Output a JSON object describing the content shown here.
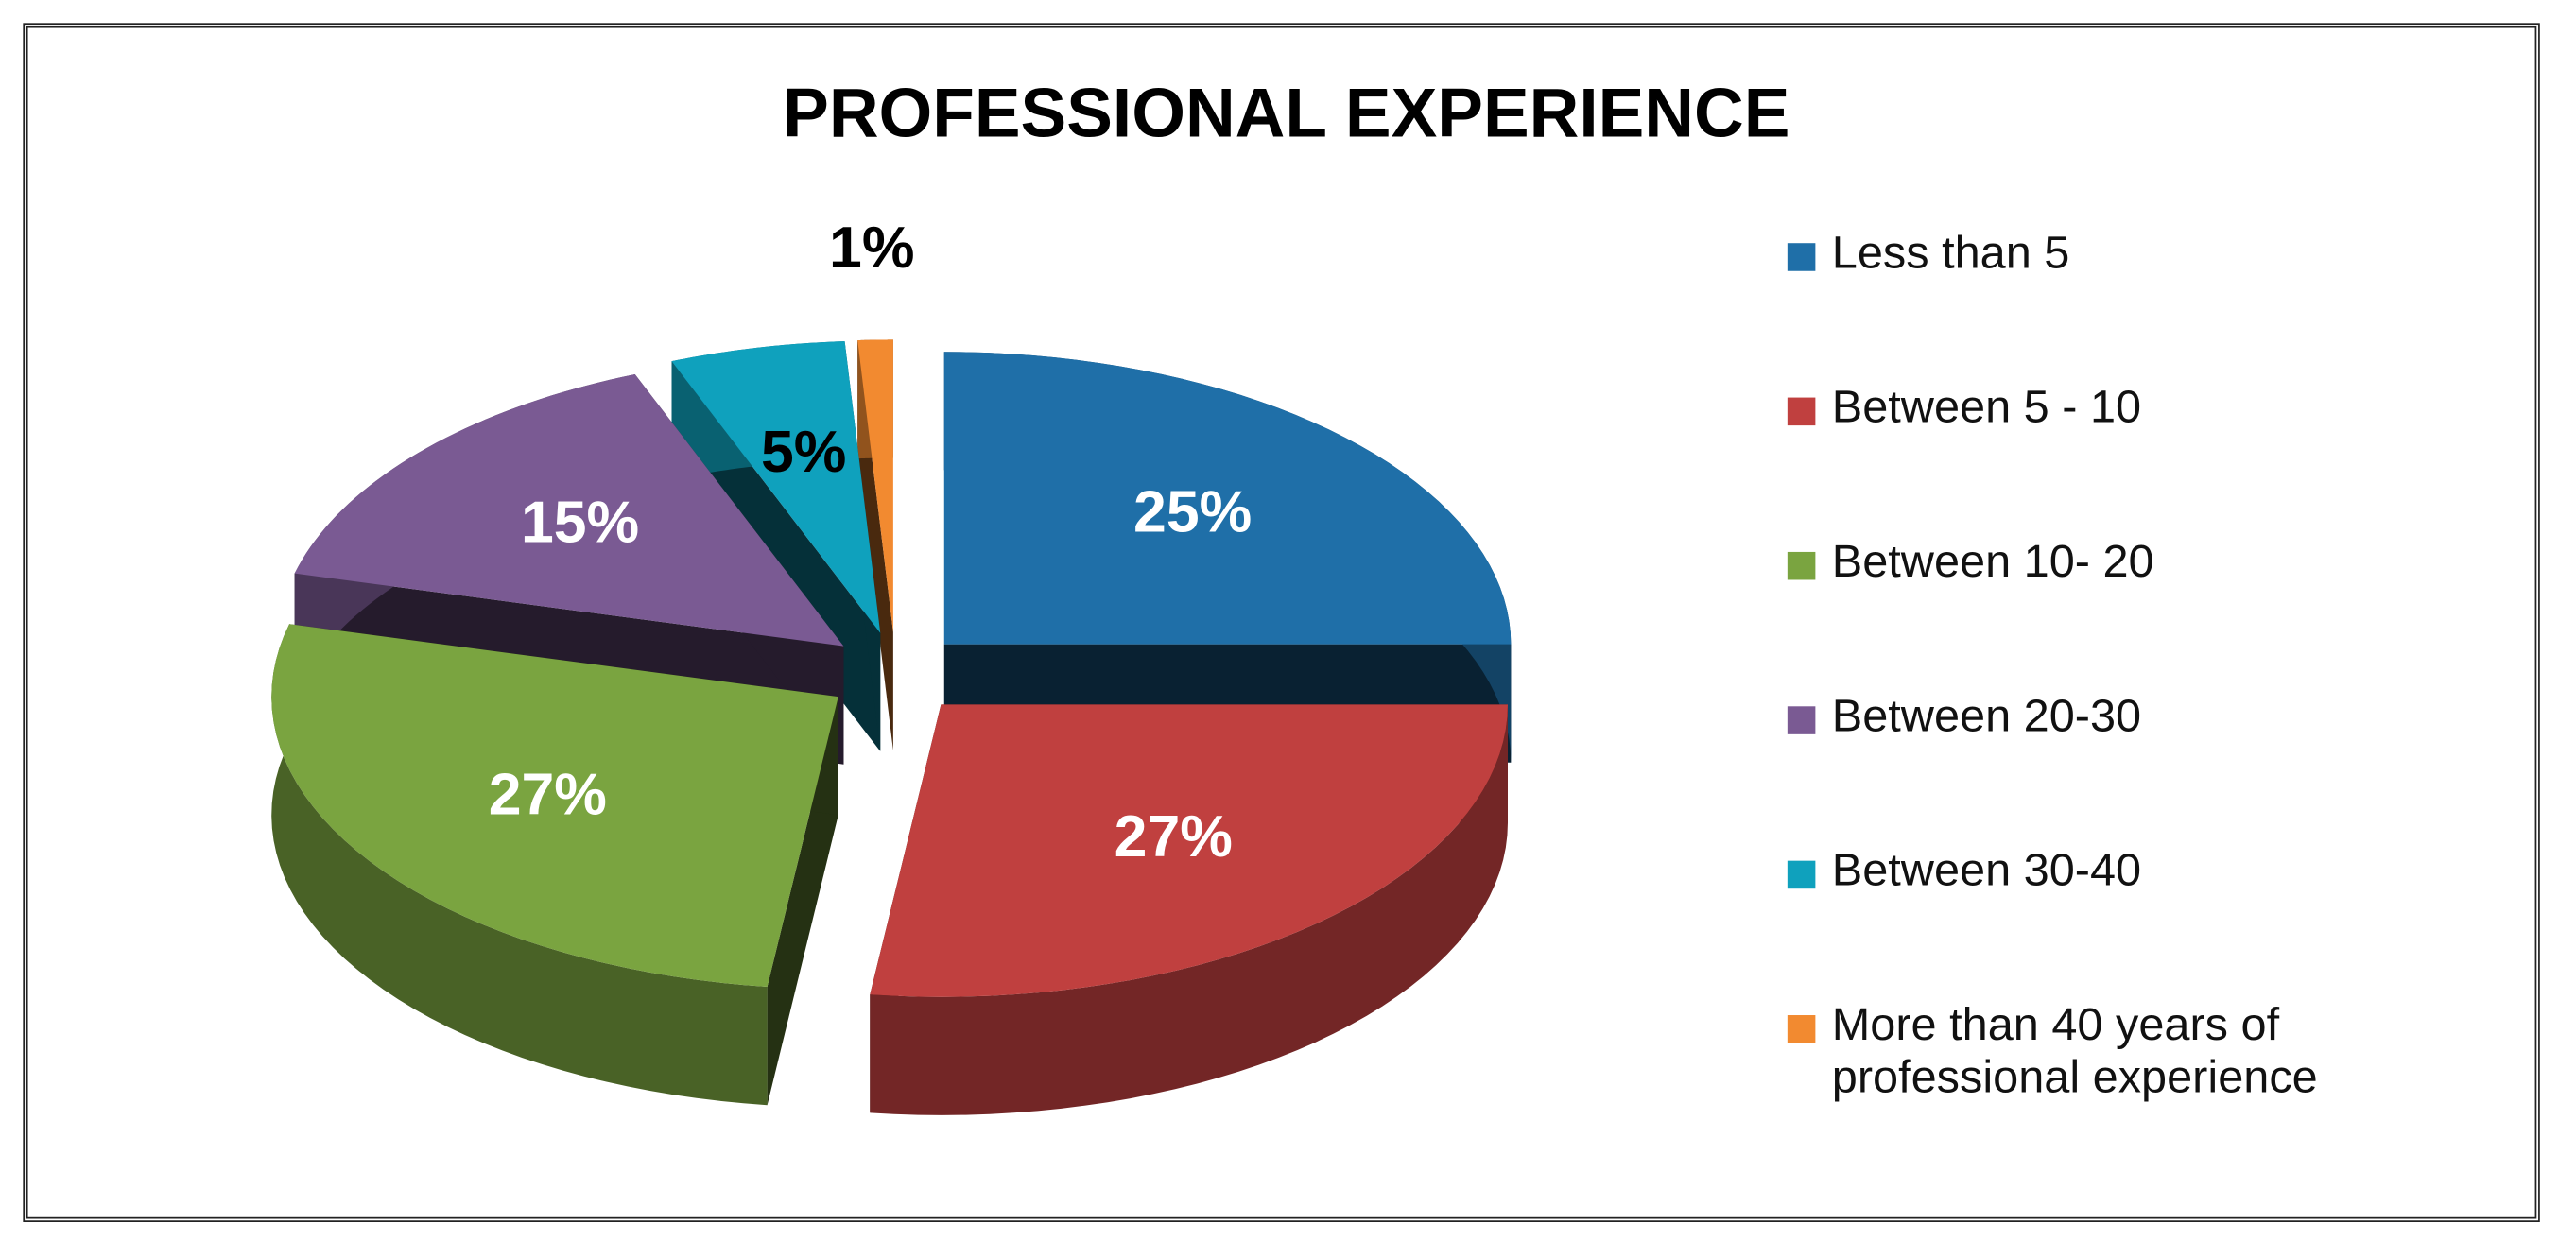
{
  "chart_data": {
    "type": "pie",
    "title": "PROFESSIONAL EXPERIENCE",
    "categories": [
      "Less than 5",
      "Between 5 - 10",
      "Between 10- 20",
      "Between 20-30",
      "Between 30-40",
      "More than 40 years of professional experience"
    ],
    "values": [
      25,
      27,
      27,
      15,
      5,
      1
    ],
    "value_labels": [
      "25%",
      "27%",
      "27%",
      "15%",
      "5%",
      "1%"
    ],
    "colors": [
      "#1f6fa8",
      "#c0403f",
      "#7aa440",
      "#7a5a93",
      "#0fa1bd",
      "#f28a30"
    ],
    "legend": "right"
  }
}
